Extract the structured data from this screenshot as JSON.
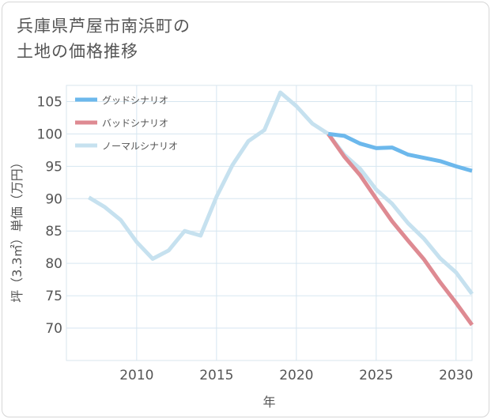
{
  "title_lines": [
    "兵庫県芦屋市南浜町の",
    "土地の価格推移"
  ],
  "chart_data": {
    "type": "line",
    "title": "兵庫県芦屋市南浜町の土地の価格推移",
    "xlabel": "年",
    "ylabel": "坪（3.3㎡）単価（万円）",
    "xlim": [
      2005.6,
      2031
    ],
    "ylim": [
      65,
      107.5
    ],
    "x_ticks": [
      2010,
      2015,
      2020,
      2025,
      2030
    ],
    "y_ticks": [
      70,
      75,
      80,
      85,
      90,
      95,
      100,
      105
    ],
    "grid": true,
    "legend_position": "top-left",
    "series": [
      {
        "name": "グッドシナリオ",
        "color": "#6cb8ec",
        "x": [
          2022,
          2023,
          2024,
          2025,
          2026,
          2027,
          2028,
          2029,
          2030,
          2031
        ],
        "values": [
          100.0,
          99.7,
          98.5,
          97.8,
          97.9,
          96.8,
          96.3,
          95.8,
          95.0,
          94.3
        ]
      },
      {
        "name": "バッドシナリオ",
        "color": "#de8a92",
        "x": [
          2022,
          2023,
          2024,
          2025,
          2026,
          2027,
          2028,
          2029,
          2030,
          2031
        ],
        "values": [
          100.0,
          96.5,
          93.6,
          90.0,
          86.5,
          83.5,
          80.6,
          77.1,
          73.9,
          70.5
        ]
      },
      {
        "name": "ノーマルシナリオ",
        "color": "#c6e1ef",
        "x": [
          2007,
          2008,
          2009,
          2010,
          2011,
          2012,
          2013,
          2014,
          2015,
          2016,
          2017,
          2018,
          2019,
          2020,
          2021,
          2022,
          2023,
          2024,
          2025,
          2026,
          2027,
          2028,
          2029,
          2030,
          2031
        ],
        "values": [
          90.2,
          88.7,
          86.7,
          83.3,
          80.7,
          82.0,
          85.0,
          84.3,
          90.3,
          95.2,
          98.9,
          100.6,
          106.4,
          104.3,
          101.6,
          100.0,
          96.8,
          94.6,
          91.4,
          89.2,
          86.2,
          83.8,
          80.8,
          78.6,
          75.3
        ]
      }
    ]
  }
}
